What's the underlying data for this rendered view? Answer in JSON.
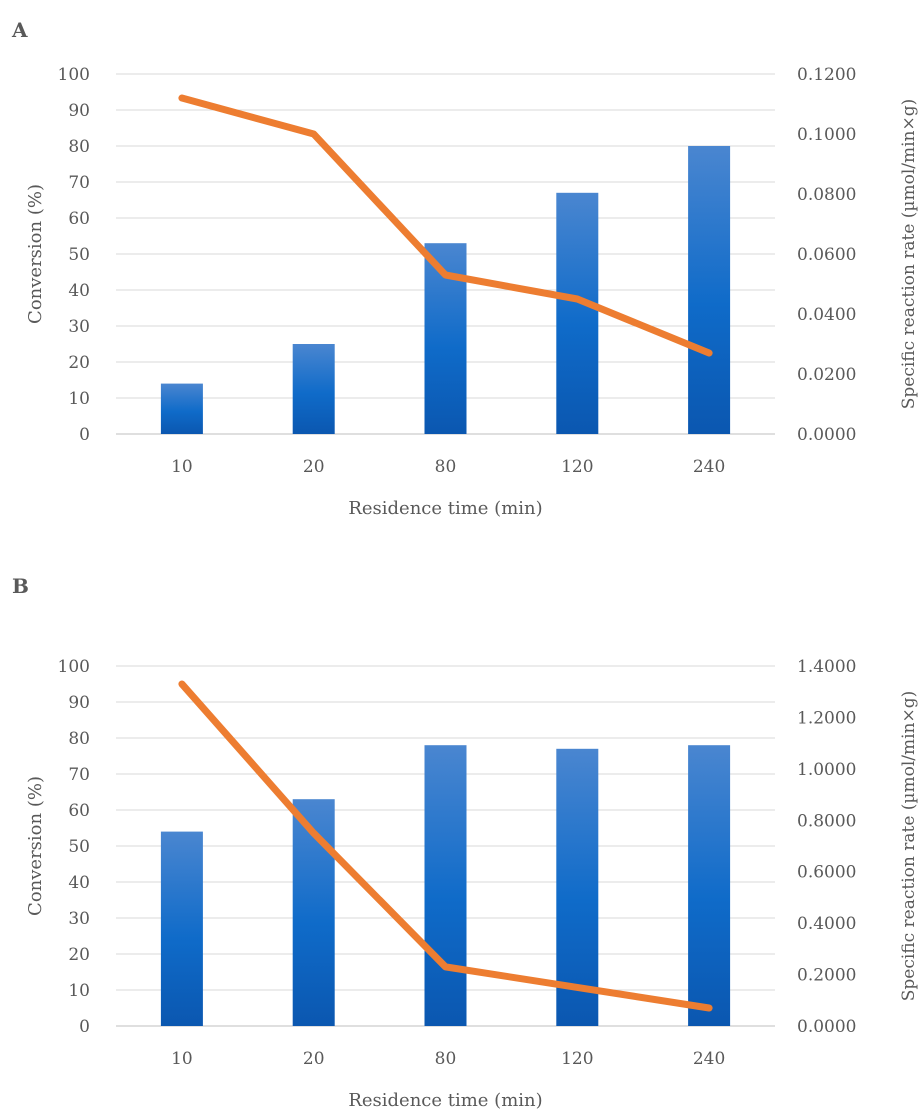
{
  "chart_data": [
    {
      "panel": "A",
      "type": "bar",
      "categories": [
        "10",
        "20",
        "80",
        "120",
        "240"
      ],
      "series": [
        {
          "values": [
            14,
            25,
            53,
            67,
            80
          ],
          "axis": "left",
          "kind": "bar",
          "color": "#1565c0"
        },
        {
          "values": [
            0.112,
            0.1,
            0.053,
            0.045,
            0.027
          ],
          "axis": "right",
          "kind": "line",
          "color": "#ed7d31"
        }
      ],
      "xlabel": "Residence time (min)",
      "ylabel": "Conversion (%)",
      "y2label": "Specific reaction rate (µmol/min×g)",
      "ylim": [
        0,
        100
      ],
      "y2lim": [
        0,
        0.12
      ],
      "yticks": [
        "0",
        "10",
        "20",
        "30",
        "40",
        "50",
        "60",
        "70",
        "80",
        "90",
        "100"
      ],
      "y2ticks": [
        "0.0000",
        "0.0200",
        "0.0400",
        "0.0600",
        "0.0800",
        "0.1000",
        "0.1200"
      ],
      "grid": true
    },
    {
      "panel": "B",
      "type": "bar",
      "categories": [
        "10",
        "20",
        "80",
        "120",
        "240"
      ],
      "series": [
        {
          "values": [
            54,
            63,
            78,
            77,
            78
          ],
          "axis": "left",
          "kind": "bar",
          "color": "#1565c0"
        },
        {
          "values": [
            1.33,
            0.75,
            0.23,
            0.15,
            0.07
          ],
          "axis": "right",
          "kind": "line",
          "color": "#ed7d31"
        }
      ],
      "xlabel": "Residence time (min)",
      "ylabel": "Conversion (%)",
      "y2label": "Specific reaction rate (µmol/min×g)",
      "ylim": [
        0,
        100
      ],
      "y2lim": [
        0,
        1.4
      ],
      "yticks": [
        "0",
        "10",
        "20",
        "30",
        "40",
        "50",
        "60",
        "70",
        "80",
        "90",
        "100"
      ],
      "y2ticks": [
        "0.0000",
        "0.2000",
        "0.4000",
        "0.6000",
        "0.8000",
        "1.0000",
        "1.2000",
        "1.4000"
      ],
      "grid": true
    }
  ]
}
